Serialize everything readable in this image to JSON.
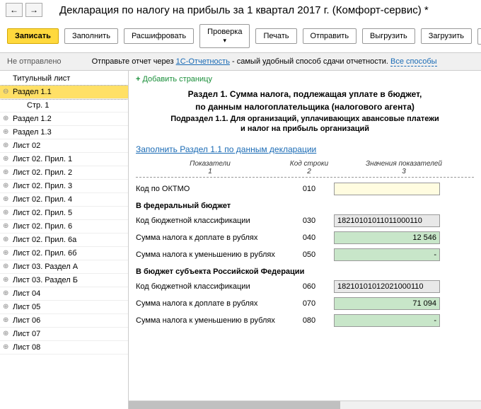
{
  "header": {
    "title": "Декларация по налогу на прибыль за 1 квартал 2017 г. (Комфорт-сервис) *"
  },
  "toolbar": {
    "save": "Записать",
    "fill": "Заполнить",
    "decode": "Расшифровать",
    "check": "Проверка",
    "print": "Печать",
    "send": "Отправить",
    "export": "Выгрузить",
    "load": "Загрузить"
  },
  "status": {
    "label": "Не отправлено",
    "text1": "Отправьте отчет через ",
    "link1": "1С-Отчетность",
    "text2": " - самый удобный способ сдачи отчетности. ",
    "link2": "Все способы"
  },
  "tree": {
    "items": [
      {
        "label": "Титульный лист",
        "exp": false
      },
      {
        "label": "Раздел 1.1",
        "exp": true,
        "sel": true
      },
      {
        "label": "Стр. 1",
        "child": true
      },
      {
        "label": "Раздел 1.2",
        "exp": true
      },
      {
        "label": "Раздел 1.3",
        "exp": true
      },
      {
        "label": "Лист 02",
        "exp": true
      },
      {
        "label": "Лист 02. Прил. 1",
        "exp": true
      },
      {
        "label": "Лист 02. Прил. 2",
        "exp": true
      },
      {
        "label": "Лист 02. Прил. 3",
        "exp": true
      },
      {
        "label": "Лист 02. Прил. 4",
        "exp": true
      },
      {
        "label": "Лист 02. Прил. 5",
        "exp": true
      },
      {
        "label": "Лист 02. Прил. 6",
        "exp": true
      },
      {
        "label": "Лист 02. Прил. 6а",
        "exp": true
      },
      {
        "label": "Лист 02. Прил. 6б",
        "exp": true
      },
      {
        "label": "Лист 03. Раздел А",
        "exp": true
      },
      {
        "label": "Лист 03. Раздел Б",
        "exp": true
      },
      {
        "label": "Лист 04",
        "exp": true
      },
      {
        "label": "Лист 05",
        "exp": true
      },
      {
        "label": "Лист 06",
        "exp": true
      },
      {
        "label": "Лист 07",
        "exp": true
      },
      {
        "label": "Лист 08",
        "exp": true
      }
    ]
  },
  "content": {
    "add_page": "Добавить страницу",
    "title1": "Раздел 1. Сумма налога, подлежащая уплате в бюджет,",
    "title2": "по данным налогоплательщика (налогового агента)",
    "subtitle1": "Подраздел 1.1. Для организаций, уплачивающих авансовые платежи",
    "subtitle2": "и налог на прибыль организаций",
    "fill_link": "Заполнить Раздел 1.1 по данным декларации",
    "th1a": "Показатели",
    "th1b": "1",
    "th2a": "Код строки",
    "th2b": "2",
    "th3a": "Значения показателей",
    "th3b": "3",
    "rows": [
      {
        "label": "Код по ОКТМО",
        "code": "010",
        "val": "",
        "cls": "inp-yellow"
      },
      {
        "sub": "В федеральный бюджет"
      },
      {
        "label": "Код бюджетной классификации",
        "code": "030",
        "val": "18210101011011000110",
        "cls": "inp-gray",
        "align": "left"
      },
      {
        "label": "Сумма налога к доплате в рублях",
        "code": "040",
        "val": "12 546",
        "cls": "inp-green"
      },
      {
        "label": "Сумма налога к уменьшению в рублях",
        "code": "050",
        "val": "-",
        "cls": "inp-green"
      },
      {
        "sub": "В бюджет субъекта Российской Федерации"
      },
      {
        "label": "Код бюджетной классификации",
        "code": "060",
        "val": "18210101012021000110",
        "cls": "inp-gray",
        "align": "left"
      },
      {
        "label": "Сумма налога к доплате в рублях",
        "code": "070",
        "val": "71 094",
        "cls": "inp-green"
      },
      {
        "label": "Сумма налога к уменьшению в рублях",
        "code": "080",
        "val": "-",
        "cls": "inp-green"
      }
    ]
  }
}
